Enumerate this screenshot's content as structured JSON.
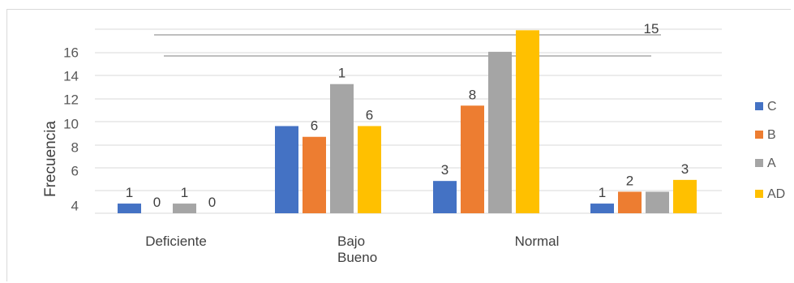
{
  "chart_data": {
    "type": "bar",
    "ylabel": "Frecuencia",
    "y_ticks": [
      "4",
      "6",
      "8",
      "10",
      "12",
      "14",
      "16"
    ],
    "categories": [
      "Deficiente",
      "Bajo\nBueno",
      "Normal",
      ""
    ],
    "series": [
      {
        "name": "C",
        "color": "#4472C4",
        "values": [
          0.9,
          8.1,
          3.0,
          0.9
        ]
      },
      {
        "name": "B",
        "color": "#ED7D31",
        "values": [
          0.0,
          7.1,
          10.0,
          2.0
        ]
      },
      {
        "name": "A",
        "color": "#A5A5A5",
        "values": [
          0.9,
          12.0,
          15.0,
          2.0
        ]
      },
      {
        "name": "AD",
        "color": "#FFC000",
        "values": [
          0.0,
          8.1,
          17.0,
          3.1
        ]
      }
    ],
    "data_labels": [
      [
        "1",
        "0",
        "1",
        "0"
      ],
      [
        "",
        "6",
        "1",
        "6"
      ],
      [
        "3",
        "8",
        "",
        ""
      ],
      [
        "1",
        "2",
        "",
        "3"
      ]
    ],
    "top_label": "15",
    "ylim": [
      0,
      17.1
    ],
    "grid": true,
    "legend": "right"
  }
}
